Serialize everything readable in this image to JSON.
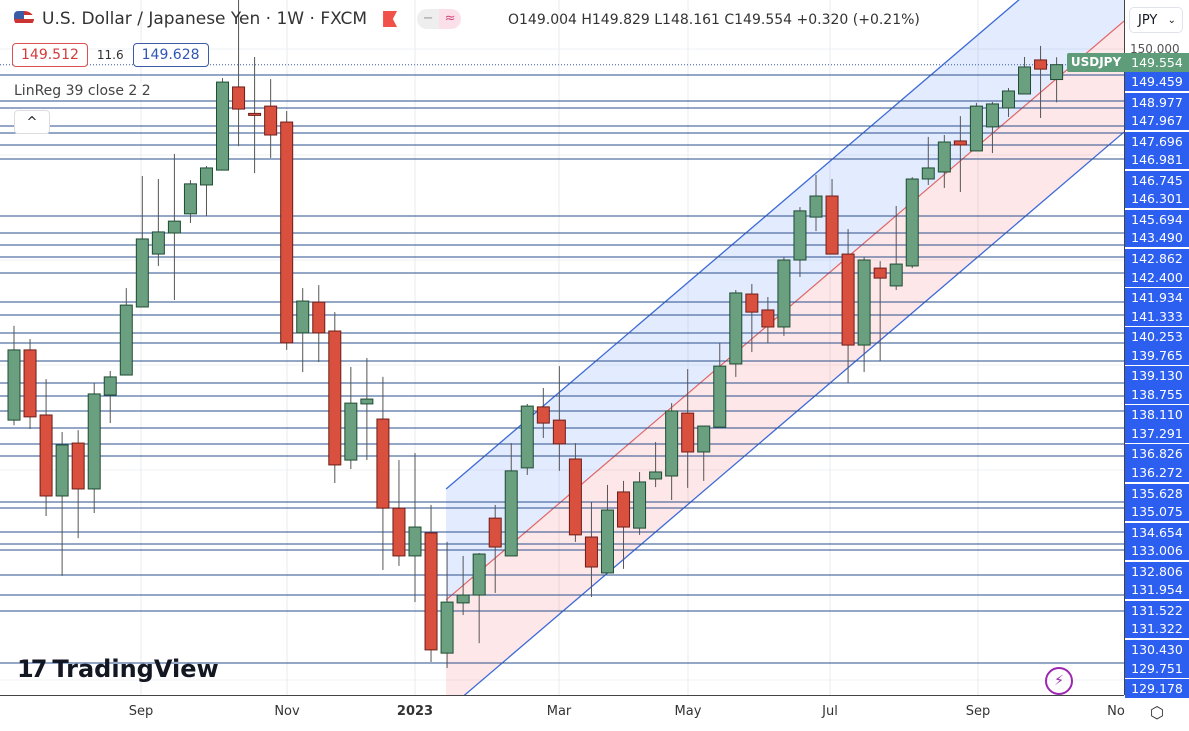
{
  "header": {
    "title": "U.S. Dollar / Japanese Yen · 1W · FXCM",
    "ohlc": "O149.004 H149.829 L148.161 C149.554 +0.320 (+0.21%)",
    "pill_minus": "−",
    "pill_wave": "≈"
  },
  "quote": {
    "bid": "149.512",
    "spread": "11.6",
    "ask": "149.628"
  },
  "indicator": {
    "label": "LinReg 39 close 2 2",
    "collapse": "^"
  },
  "price_axis": {
    "currency": "JPY",
    "top_tick": "150.000",
    "symbol_badge": "USDJPY",
    "last_price": "149.554",
    "line_labels": [
      "149.459",
      "148.977",
      "147.967",
      "147.696",
      "146.981",
      "146.745",
      "146.301",
      "145.694",
      "143.490",
      "142.862",
      "142.400",
      "141.934",
      "141.333",
      "140.253",
      "139.765",
      "139.130",
      "138.755",
      "138.110",
      "137.291",
      "136.826",
      "136.272",
      "135.628",
      "135.075",
      "134.654",
      "133.006",
      "132.806",
      "131.954",
      "131.522",
      "131.322",
      "130.430",
      "129.751",
      "129.178"
    ]
  },
  "branding": {
    "logo": "TradingView"
  },
  "colors": {
    "up": "#6a9f80",
    "down": "#d9503f",
    "line": "#2b4f8c",
    "axis_label": "#2c5ef0",
    "channel_up": "#2962ff",
    "channel_mid": "#e06666"
  },
  "chart_data": {
    "type": "candlestick",
    "title": "U.S. Dollar / Japanese Yen · 1W · FXCM",
    "interval": "1W",
    "x_tick_labels": [
      "Sep",
      "Nov",
      "2023",
      "Mar",
      "May",
      "Jul",
      "Sep",
      "No"
    ],
    "y_range": [
      127.2,
      151.95
    ],
    "grid": true,
    "candles": [
      [
        136.39,
        139.88,
        136.2,
        138.99
      ],
      [
        138.99,
        139.39,
        136.06,
        136.51
      ],
      [
        136.58,
        137.91,
        132.84,
        133.58
      ],
      [
        133.58,
        135.95,
        130.62,
        135.47
      ],
      [
        135.54,
        136.02,
        132.02,
        133.84
      ],
      [
        133.84,
        137.77,
        132.95,
        137.36
      ],
      [
        137.32,
        138.21,
        136.28,
        137.99
      ],
      [
        138.06,
        141.28,
        138.06,
        140.65
      ],
      [
        140.58,
        145.43,
        140.58,
        143.1
      ],
      [
        142.54,
        145.32,
        142.1,
        143.36
      ],
      [
        143.32,
        146.25,
        140.84,
        143.76
      ],
      [
        144.03,
        145.28,
        143.69,
        145.14
      ],
      [
        145.1,
        145.8,
        143.95,
        145.73
      ],
      [
        145.65,
        149.06,
        145.65,
        148.91
      ],
      [
        148.73,
        151.95,
        146.54,
        147.91
      ],
      [
        147.75,
        149.84,
        145.54,
        147.73
      ],
      [
        148.02,
        149.02,
        146.1,
        146.95
      ],
      [
        147.43,
        147.84,
        138.99,
        139.25
      ],
      [
        139.62,
        141.28,
        138.17,
        140.8
      ],
      [
        140.76,
        141.39,
        138.54,
        139.62
      ],
      [
        139.69,
        140.39,
        134.06,
        134.73
      ],
      [
        134.91,
        138.36,
        134.58,
        137.02
      ],
      [
        136.99,
        138.69,
        134.91,
        137.17
      ],
      [
        136.43,
        137.99,
        130.84,
        133.13
      ],
      [
        133.13,
        134.91,
        130.99,
        131.36
      ],
      [
        131.36,
        135.17,
        129.65,
        132.43
      ],
      [
        132.21,
        133.25,
        127.43,
        127.88
      ],
      [
        127.76,
        131.88,
        127.21,
        129.65
      ],
      [
        129.62,
        131.36,
        129.17,
        129.91
      ],
      [
        129.91,
        131.47,
        128.13,
        131.43
      ],
      [
        132.76,
        133.25,
        129.99,
        131.69
      ],
      [
        131.36,
        135.54,
        131.36,
        134.51
      ],
      [
        134.62,
        136.99,
        134.36,
        136.91
      ],
      [
        136.88,
        137.58,
        135.73,
        136.28
      ],
      [
        136.39,
        138.39,
        134.51,
        135.51
      ],
      [
        134.95,
        135.54,
        131.88,
        132.14
      ],
      [
        132.06,
        133.36,
        129.84,
        130.95
      ],
      [
        130.73,
        133.99,
        130.73,
        133.06
      ],
      [
        133.73,
        134.14,
        130.88,
        132.43
      ],
      [
        132.39,
        134.47,
        132.14,
        134.1
      ],
      [
        134.21,
        135.58,
        133.91,
        134.47
      ],
      [
        134.32,
        137.02,
        133.43,
        136.73
      ],
      [
        136.65,
        138.28,
        133.88,
        135.21
      ],
      [
        135.21,
        136.17,
        134.14,
        136.17
      ],
      [
        136.13,
        139.25,
        136.13,
        138.39
      ],
      [
        138.47,
        141.21,
        137.99,
        141.1
      ],
      [
        141.06,
        141.43,
        138.91,
        140.39
      ],
      [
        140.47,
        140.95,
        139.25,
        139.84
      ],
      [
        139.84,
        142.43,
        139.51,
        142.32
      ],
      [
        142.32,
        144.28,
        141.69,
        144.14
      ],
      [
        143.91,
        145.47,
        143.39,
        144.69
      ],
      [
        144.69,
        145.32,
        142.54,
        142.54
      ],
      [
        142.54,
        143.47,
        137.76,
        139.17
      ],
      [
        139.17,
        142.43,
        138.17,
        142.32
      ],
      [
        142.02,
        142.28,
        138.58,
        141.65
      ],
      [
        141.36,
        144.32,
        141.21,
        142.17
      ],
      [
        142.1,
        145.39,
        142.02,
        145.32
      ],
      [
        145.32,
        146.88,
        145.1,
        145.73
      ],
      [
        145.58,
        146.95,
        144.99,
        146.69
      ],
      [
        146.73,
        147.65,
        144.84,
        146.58
      ],
      [
        146.36,
        148.14,
        146.36,
        148.02
      ],
      [
        147.25,
        148.17,
        146.28,
        148.1
      ],
      [
        147.95,
        148.69,
        147.62,
        148.58
      ],
      [
        148.47,
        149.84,
        148.47,
        149.47
      ],
      [
        149.73,
        150.25,
        147.58,
        149.39
      ],
      [
        149.004,
        149.829,
        148.161,
        149.554
      ]
    ],
    "candle_format": [
      "open",
      "high",
      "low",
      "close"
    ],
    "linreg_channel": {
      "length": 39,
      "source": "close",
      "mid_start": 129.73,
      "slope_per_week": 0.508,
      "deviation": 4.11
    }
  }
}
